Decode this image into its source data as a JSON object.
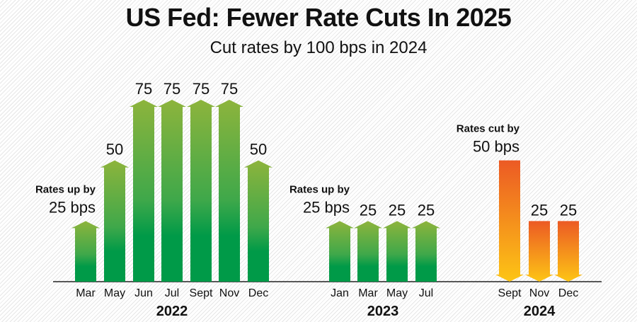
{
  "chart_data": {
    "type": "bar",
    "title": "US Fed: Fewer Rate Cuts In 2025",
    "subtitle": "Cut rates by 100 bps in 2024",
    "unit": "bps",
    "groups": [
      {
        "year": "2022",
        "direction": "up",
        "categories": [
          "Mar",
          "May",
          "Jun",
          "Jul",
          "Sept",
          "Nov",
          "Dec"
        ],
        "values": [
          25,
          50,
          75,
          75,
          75,
          75,
          50
        ],
        "annotation": {
          "line1": "Rates up by",
          "line2": "25 bps"
        }
      },
      {
        "year": "2023",
        "direction": "up",
        "categories": [
          "Jan",
          "Mar",
          "May",
          "Jul"
        ],
        "values": [
          25,
          25,
          25,
          25
        ],
        "annotation": {
          "line1": "Rates up by",
          "line2": "25 bps"
        }
      },
      {
        "year": "2024",
        "direction": "down",
        "categories": [
          "Sept",
          "Nov",
          "Dec"
        ],
        "values": [
          50,
          25,
          25
        ],
        "annotation": {
          "line1": "Rates cut by",
          "line2": "50 bps"
        }
      }
    ],
    "ylim": [
      0,
      75
    ],
    "grid": false,
    "colors": {
      "up_top": "#8db43c",
      "up_bottom": "#009a48",
      "down_top": "#ec5a24",
      "down_bottom": "#fdc515"
    }
  }
}
